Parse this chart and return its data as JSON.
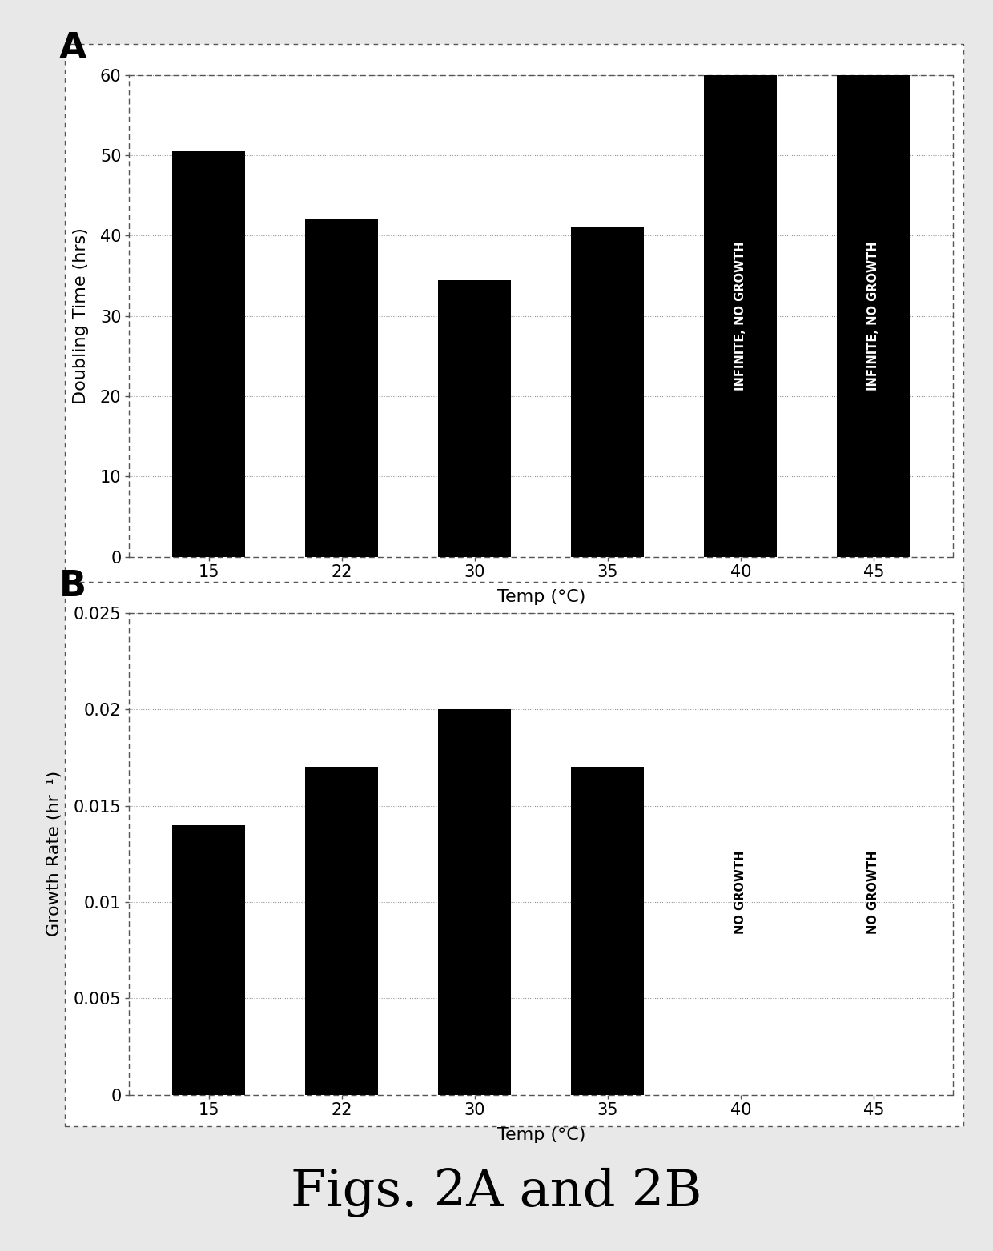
{
  "fig_title": "Figs. 2A and 2B",
  "bg_color": "#e8e8e8",
  "panel_bg": "#ffffff",
  "panel_A": {
    "label": "A",
    "categories": [
      "15",
      "22",
      "30",
      "35",
      "40",
      "45"
    ],
    "values": [
      50.5,
      42.0,
      34.5,
      41.0,
      60,
      60
    ],
    "infinite_bars": [
      4,
      5
    ],
    "bar_color": "#000000",
    "infinite_label": "INFINITE, NO GROWTH",
    "ylabel": "Doubling Time (hrs)",
    "xlabel": "Temp (°C)",
    "ylim": [
      0,
      60
    ],
    "yticks": [
      0,
      10,
      20,
      30,
      40,
      50,
      60
    ]
  },
  "panel_B": {
    "label": "B",
    "categories": [
      "15",
      "22",
      "30",
      "35",
      "40",
      "45"
    ],
    "values": [
      0.014,
      0.017,
      0.02,
      0.017,
      0,
      0
    ],
    "no_growth_bars": [
      4,
      5
    ],
    "bar_color": "#000000",
    "no_growth_label": "NO GROWTH",
    "ylabel": "Growth Rate (hr⁻¹)",
    "xlabel": "Temp (°C)",
    "ylim": [
      0,
      0.025
    ],
    "yticks": [
      0,
      0.005,
      0.01,
      0.015,
      0.02,
      0.025
    ]
  }
}
